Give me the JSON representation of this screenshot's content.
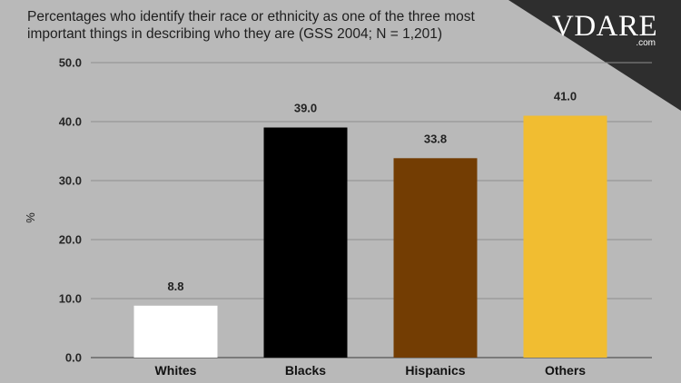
{
  "chart_data": {
    "type": "bar",
    "title": "Percentages who identify their race or ethnicity as one of the three most important things in describing who they are (GSS 2004; N = 1,201)",
    "ylabel": "%",
    "xlabel": "",
    "categories": [
      "Whites",
      "Blacks",
      "Hispanics",
      "Others"
    ],
    "values": [
      8.8,
      39.0,
      33.8,
      41.0
    ],
    "data_labels": [
      "8.8",
      "39.0",
      "33.8",
      "41.0"
    ],
    "colors": [
      "#ffffff",
      "#000000",
      "#733d03",
      "#f1bd31"
    ],
    "ylim": [
      0,
      50
    ],
    "yticks": [
      "0.0",
      "10.0",
      "20.0",
      "30.0",
      "40.0",
      "50.0"
    ],
    "grid": true,
    "legend": "none"
  },
  "logo": {
    "main": "VDARE",
    "sub": ".com"
  },
  "theme": {
    "background": "#b9b9b9",
    "corner": "#2e2e2e",
    "grid": "#8f8f8f"
  }
}
